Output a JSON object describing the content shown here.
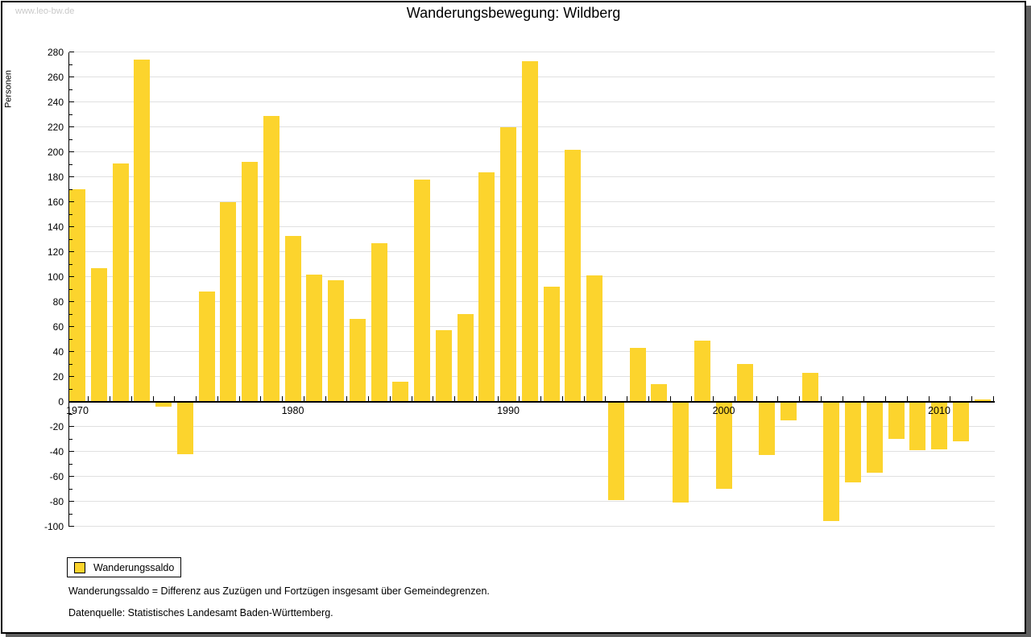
{
  "window": {
    "watermark": "www.leo-bw.de"
  },
  "header": {
    "title": "Wanderungsbewegung: Wildberg"
  },
  "chart_data": {
    "type": "bar",
    "title": "Wanderungsbewegung: Wildberg",
    "ylabel": "Personen",
    "xlabel": "",
    "ylim": [
      -100,
      280
    ],
    "ytick_step": 20,
    "ytick_minor_step": 10,
    "grid": true,
    "legend_position": "bottom-left",
    "bar_color": "#FCD42D",
    "grid_color": "#e0e0e0",
    "series_name": "Wanderungssaldo",
    "categories": [
      1970,
      1971,
      1972,
      1973,
      1974,
      1975,
      1976,
      1977,
      1978,
      1979,
      1980,
      1981,
      1982,
      1983,
      1984,
      1985,
      1986,
      1987,
      1988,
      1989,
      1990,
      1991,
      1992,
      1993,
      1994,
      1995,
      1996,
      1997,
      1998,
      1999,
      2000,
      2001,
      2002,
      2003,
      2004,
      2005,
      2006,
      2007,
      2008,
      2009,
      2010,
      2011,
      2012
    ],
    "values": [
      170,
      107,
      191,
      274,
      -4,
      -42,
      88,
      160,
      192,
      229,
      133,
      102,
      97,
      66,
      127,
      16,
      178,
      57,
      70,
      184,
      220,
      273,
      92,
      202,
      101,
      -79,
      43,
      14,
      -81,
      49,
      -70,
      30,
      -43,
      -15,
      23,
      -96,
      -65,
      -57,
      -30,
      -39,
      -38,
      -32,
      2
    ],
    "ytick_labels": [
      280,
      260,
      240,
      220,
      200,
      180,
      160,
      140,
      120,
      100,
      80,
      60,
      40,
      20,
      0,
      -20,
      -40,
      -60,
      -80,
      -100
    ],
    "xtick_labels": [
      "1970",
      "1980",
      "1990",
      "2000",
      "2010"
    ],
    "xtick_label_years": [
      1970,
      1980,
      1990,
      2000,
      2010
    ]
  },
  "legend": {
    "label": "Wanderungssaldo"
  },
  "footnotes": {
    "line1": "Wanderungssaldo = Differenz aus Zuzügen und Fortzügen insgesamt über Gemeindegrenzen.",
    "line2": "Datenquelle: Statistisches Landesamt Baden-Württemberg."
  }
}
